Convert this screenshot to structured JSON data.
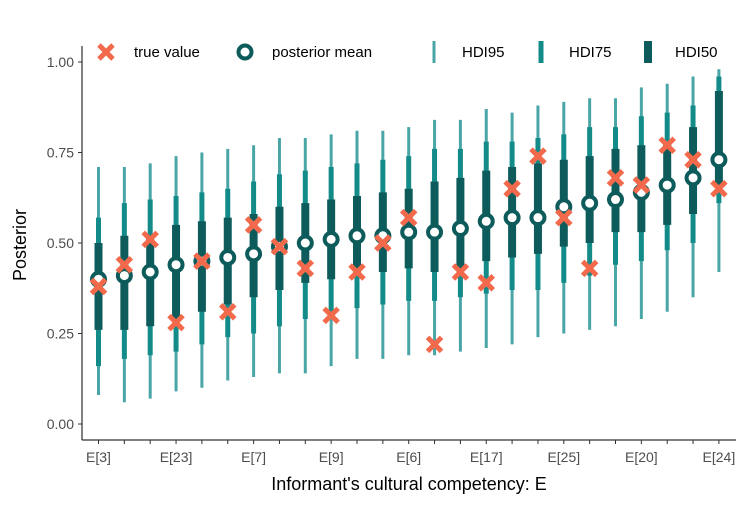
{
  "chart_data": {
    "type": "interval",
    "xlabel": "Informant's cultural competency: E",
    "ylabel": "Posterior",
    "ylim": [
      0,
      1
    ],
    "y_ticks": [
      "0.00",
      "0.25",
      "0.50",
      "0.75",
      "1.00"
    ],
    "x_tick_labels": [
      "E[3]",
      "E[23]",
      "E[7]",
      "E[9]",
      "E[6]",
      "E[17]",
      "E[25]",
      "E[20]",
      "E[24]"
    ],
    "legend": {
      "position": "top",
      "items": [
        {
          "key": "true",
          "label": "true value"
        },
        {
          "key": "mean",
          "label": "posterior mean"
        },
        {
          "key": "hdi95",
          "label": "HDI95"
        },
        {
          "key": "hdi75",
          "label": "HDI75"
        },
        {
          "key": "hdi50",
          "label": "HDI50"
        }
      ]
    },
    "colors": {
      "hdi95": "#4aa6a6",
      "hdi75": "#138b89",
      "hdi50": "#0d5c5b",
      "mean": "#0d5c5b",
      "true": "#f26a4b"
    },
    "points": [
      {
        "mean": 0.4,
        "true": 0.38,
        "hdi95": [
          0.08,
          0.71
        ],
        "hdi75": [
          0.16,
          0.57
        ],
        "hdi50": [
          0.26,
          0.5
        ]
      },
      {
        "mean": 0.41,
        "true": 0.44,
        "hdi95": [
          0.06,
          0.71
        ],
        "hdi75": [
          0.18,
          0.61
        ],
        "hdi50": [
          0.26,
          0.52
        ]
      },
      {
        "mean": 0.42,
        "true": 0.51,
        "hdi95": [
          0.07,
          0.72
        ],
        "hdi75": [
          0.19,
          0.62
        ],
        "hdi50": [
          0.27,
          0.52
        ]
      },
      {
        "mean": 0.44,
        "true": 0.28,
        "hdi95": [
          0.09,
          0.74
        ],
        "hdi75": [
          0.2,
          0.63
        ],
        "hdi50": [
          0.29,
          0.55
        ]
      },
      {
        "mean": 0.45,
        "true": 0.45,
        "hdi95": [
          0.1,
          0.75
        ],
        "hdi75": [
          0.22,
          0.64
        ],
        "hdi50": [
          0.31,
          0.56
        ]
      },
      {
        "mean": 0.46,
        "true": 0.31,
        "hdi95": [
          0.12,
          0.76
        ],
        "hdi75": [
          0.24,
          0.65
        ],
        "hdi50": [
          0.33,
          0.57
        ]
      },
      {
        "mean": 0.47,
        "true": 0.55,
        "hdi95": [
          0.13,
          0.77
        ],
        "hdi75": [
          0.25,
          0.67
        ],
        "hdi50": [
          0.35,
          0.58
        ]
      },
      {
        "mean": 0.49,
        "true": 0.49,
        "hdi95": [
          0.14,
          0.79
        ],
        "hdi75": [
          0.27,
          0.69
        ],
        "hdi50": [
          0.37,
          0.6
        ]
      },
      {
        "mean": 0.5,
        "true": 0.43,
        "hdi95": [
          0.14,
          0.79
        ],
        "hdi75": [
          0.29,
          0.7
        ],
        "hdi50": [
          0.39,
          0.61
        ]
      },
      {
        "mean": 0.51,
        "true": 0.3,
        "hdi95": [
          0.16,
          0.8
        ],
        "hdi75": [
          0.3,
          0.71
        ],
        "hdi50": [
          0.4,
          0.62
        ]
      },
      {
        "mean": 0.52,
        "true": 0.42,
        "hdi95": [
          0.18,
          0.81
        ],
        "hdi75": [
          0.32,
          0.72
        ],
        "hdi50": [
          0.41,
          0.63
        ]
      },
      {
        "mean": 0.52,
        "true": 0.5,
        "hdi95": [
          0.18,
          0.81
        ],
        "hdi75": [
          0.33,
          0.73
        ],
        "hdi50": [
          0.42,
          0.64
        ]
      },
      {
        "mean": 0.53,
        "true": 0.57,
        "hdi95": [
          0.19,
          0.82
        ],
        "hdi75": [
          0.34,
          0.74
        ],
        "hdi50": [
          0.43,
          0.65
        ]
      },
      {
        "mean": 0.53,
        "true": 0.22,
        "hdi95": [
          0.19,
          0.84
        ],
        "hdi75": [
          0.34,
          0.76
        ],
        "hdi50": [
          0.42,
          0.67
        ]
      },
      {
        "mean": 0.54,
        "true": 0.42,
        "hdi95": [
          0.2,
          0.84
        ],
        "hdi75": [
          0.35,
          0.76
        ],
        "hdi50": [
          0.43,
          0.68
        ]
      },
      {
        "mean": 0.56,
        "true": 0.39,
        "hdi95": [
          0.21,
          0.87
        ],
        "hdi75": [
          0.36,
          0.78
        ],
        "hdi50": [
          0.45,
          0.7
        ]
      },
      {
        "mean": 0.57,
        "true": 0.65,
        "hdi95": [
          0.22,
          0.86
        ],
        "hdi75": [
          0.37,
          0.78
        ],
        "hdi50": [
          0.46,
          0.71
        ]
      },
      {
        "mean": 0.57,
        "true": 0.74,
        "hdi95": [
          0.24,
          0.88
        ],
        "hdi75": [
          0.37,
          0.79
        ],
        "hdi50": [
          0.47,
          0.72
        ]
      },
      {
        "mean": 0.6,
        "true": 0.57,
        "hdi95": [
          0.25,
          0.89
        ],
        "hdi75": [
          0.39,
          0.8
        ],
        "hdi50": [
          0.49,
          0.73
        ]
      },
      {
        "mean": 0.61,
        "true": 0.43,
        "hdi95": [
          0.26,
          0.9
        ],
        "hdi75": [
          0.41,
          0.82
        ],
        "hdi50": [
          0.5,
          0.74
        ]
      },
      {
        "mean": 0.62,
        "true": 0.68,
        "hdi95": [
          0.27,
          0.9
        ],
        "hdi75": [
          0.44,
          0.82
        ],
        "hdi50": [
          0.53,
          0.76
        ]
      },
      {
        "mean": 0.64,
        "true": 0.66,
        "hdi95": [
          0.29,
          0.93
        ],
        "hdi75": [
          0.45,
          0.85
        ],
        "hdi50": [
          0.53,
          0.77
        ]
      },
      {
        "mean": 0.66,
        "true": 0.77,
        "hdi95": [
          0.31,
          0.94
        ],
        "hdi75": [
          0.48,
          0.86
        ],
        "hdi50": [
          0.55,
          0.78
        ]
      },
      {
        "mean": 0.68,
        "true": 0.73,
        "hdi95": [
          0.35,
          0.96
        ],
        "hdi75": [
          0.5,
          0.88
        ],
        "hdi50": [
          0.58,
          0.82
        ]
      },
      {
        "mean": 0.73,
        "true": 0.65,
        "hdi95": [
          0.42,
          0.98
        ],
        "hdi75": [
          0.61,
          0.96
        ],
        "hdi50": [
          0.66,
          0.92
        ]
      }
    ]
  }
}
